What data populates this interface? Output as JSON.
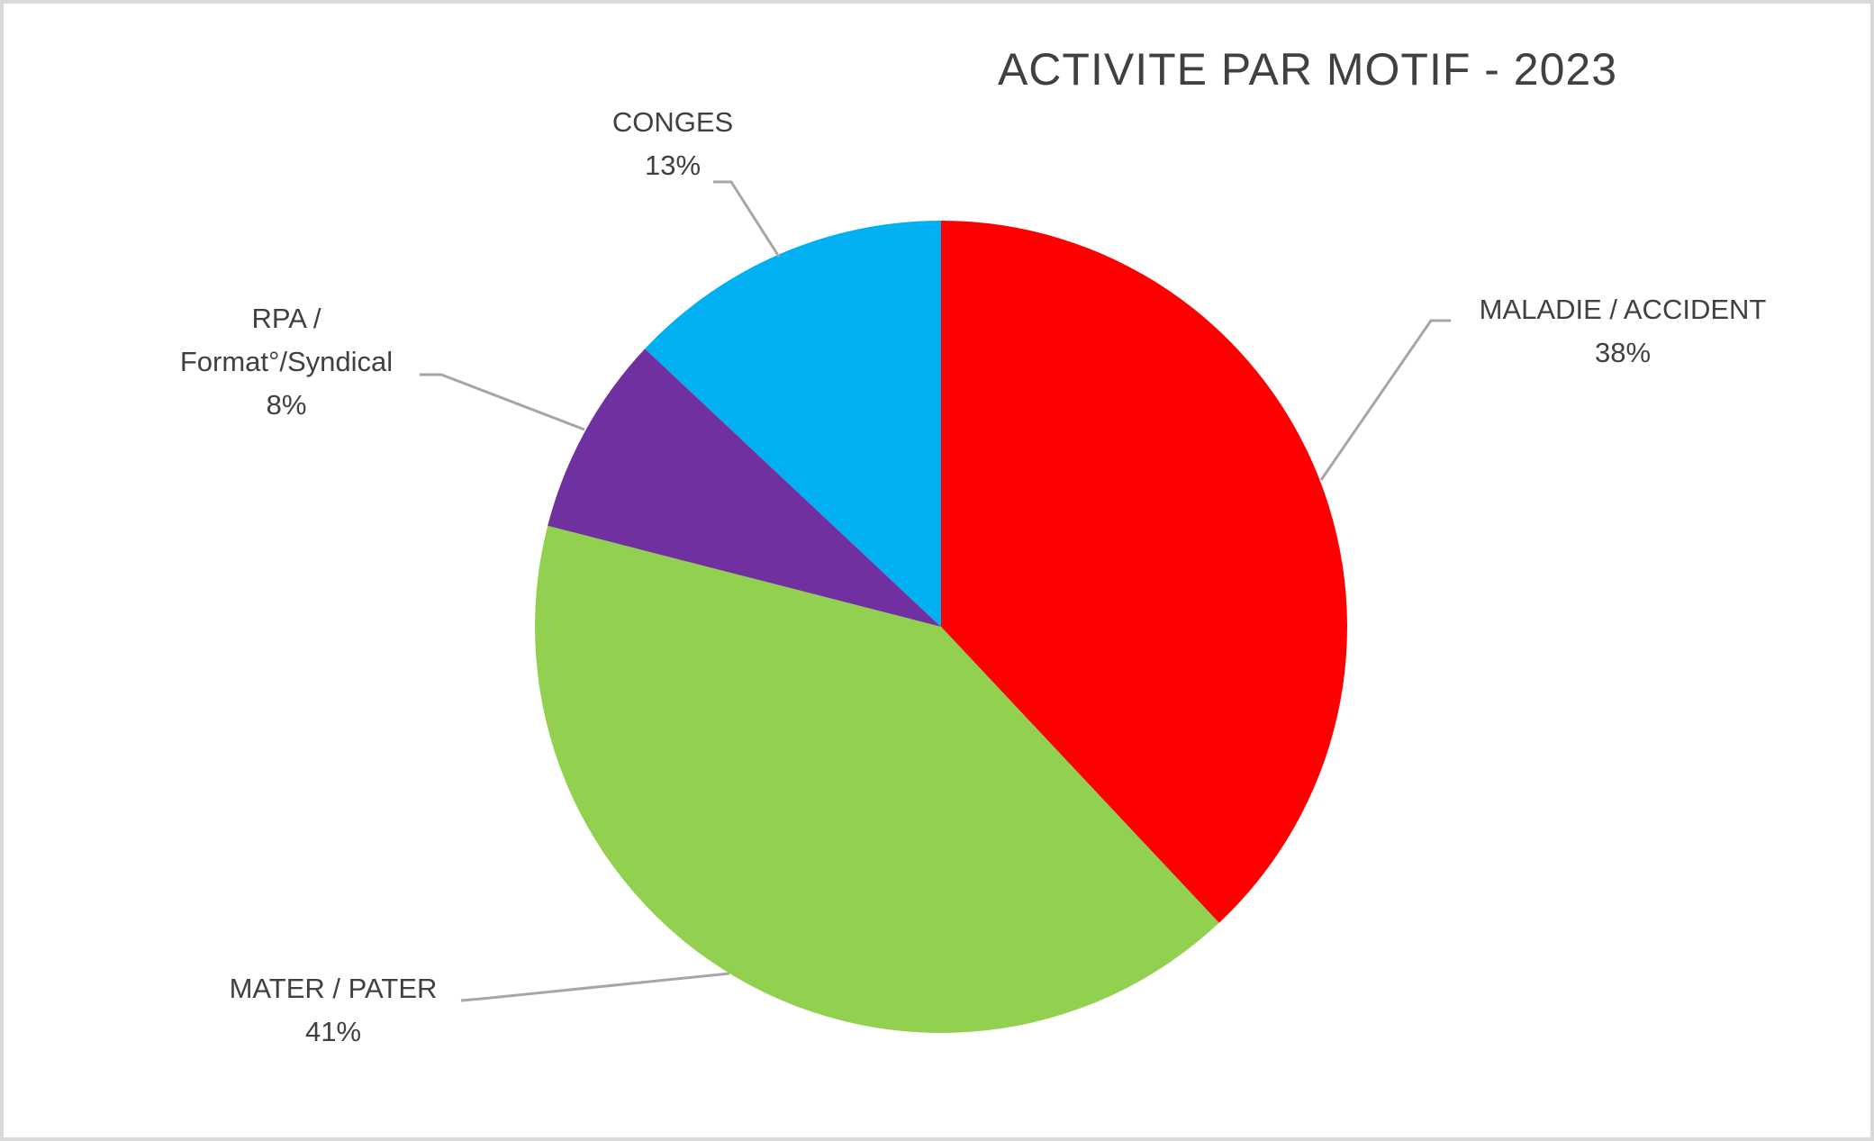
{
  "frame": {
    "background_color": "#FFFFFF",
    "border_color": "#D9D9D9"
  },
  "chart_data": {
    "type": "pie",
    "title": "ACTIVITE PAR MOTIF - 2023",
    "start_angle_deg": 0,
    "direction": "clockwise",
    "legend_position": "none",
    "label_style": "outside-callouts-with-leader-lines",
    "text_color": "#404040",
    "leader_line_color": "#A6A6A6",
    "slices": [
      {
        "label": "MALADIE / ACCIDENT",
        "pct": 38,
        "pct_label": "38%",
        "color": "#FF0000"
      },
      {
        "label": "MATER / PATER",
        "pct": 41,
        "pct_label": "41%",
        "color": "#92D050"
      },
      {
        "label": "RPA / Format°/Syndical",
        "pct": 8,
        "pct_label": "8%",
        "color": "#7030A0"
      },
      {
        "label": "CONGES",
        "pct": 13,
        "pct_label": "13%",
        "color": "#00B0F0"
      }
    ]
  }
}
